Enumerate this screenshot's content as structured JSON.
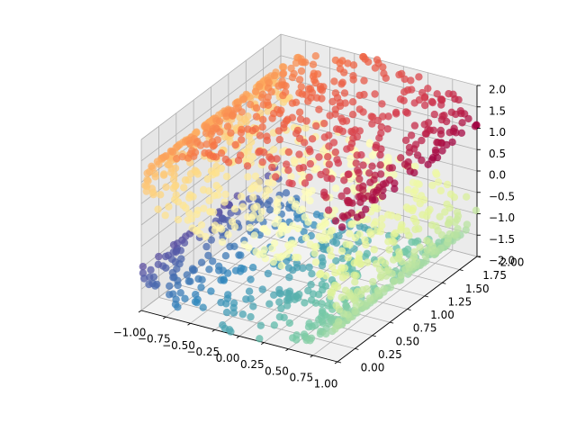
{
  "chart_data": {
    "type": "scatter",
    "projection": "3d",
    "title": "",
    "xlabel": "",
    "ylabel": "",
    "zlabel": "",
    "grid": true,
    "colormap": "Spectral",
    "colormap_stops": [
      "#9e0142",
      "#d53e4f",
      "#f46d43",
      "#fdae61",
      "#fee08b",
      "#ffffbf",
      "#e6f598",
      "#abdda4",
      "#66c2a5",
      "#3288bd",
      "#5e4fa2"
    ],
    "xlim": [
      -1.0,
      1.0
    ],
    "ylim": [
      0.0,
      2.0
    ],
    "zlim": [
      -2.0,
      2.0
    ],
    "x_ticks": [
      "−1.00",
      "−0.75",
      "−0.50",
      "−0.25",
      "0.00",
      "0.25",
      "0.50",
      "0.75",
      "1.00"
    ],
    "y_ticks": [
      "0.00",
      "0.25",
      "0.50",
      "0.75",
      "1.00",
      "1.25",
      "1.50",
      "1.75",
      "2.00"
    ],
    "z_ticks": [
      "−2.0",
      "−1.5",
      "−1.0",
      "−0.5",
      "0.0",
      "0.5",
      "1.0",
      "1.5",
      "2.0"
    ],
    "surface": {
      "shape": "S-curve",
      "t_range": [
        -4.712,
        4.712
      ],
      "x_of_t": "sin(t)",
      "z_of_t": "sign(t)*(cos(t)-1)",
      "y_range": [
        0.0,
        2.0
      ],
      "n_points": 1500,
      "alpha": 0.75
    }
  }
}
